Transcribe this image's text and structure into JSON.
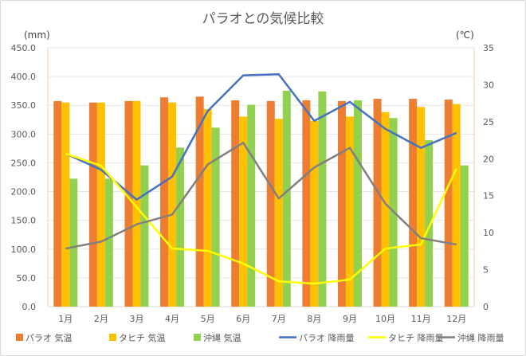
{
  "chart_data": {
    "type": "bar+line",
    "title": "パラオとの気候比較",
    "ylabel_left": "(mm)",
    "ylabel_right": "(℃)",
    "ylim_left": [
      0,
      450
    ],
    "ylim_right": [
      0,
      35
    ],
    "left_ticks": [
      "0.0",
      "50.0",
      "100.0",
      "150.0",
      "200.0",
      "250.0",
      "300.0",
      "350.0",
      "400.0",
      "450.0"
    ],
    "right_ticks": [
      "0",
      "5",
      "10",
      "15",
      "20",
      "25",
      "30",
      "35"
    ],
    "categories": [
      "1月",
      "2月",
      "3月",
      "4月",
      "5月",
      "6月",
      "7月",
      "8月",
      "9月",
      "10月",
      "11月",
      "12月"
    ],
    "grid": true,
    "legend_position": "bottom",
    "bar_series": [
      {
        "name": "パラオ 気温",
        "color": "#ED7D31",
        "axis": "right",
        "values": [
          27.8,
          27.6,
          27.8,
          28.3,
          28.4,
          27.9,
          27.8,
          27.9,
          27.8,
          28.1,
          28.1,
          28.0
        ]
      },
      {
        "name": "タヒチ 気温",
        "color": "#FFC000",
        "axis": "right",
        "values": [
          27.6,
          27.6,
          27.8,
          27.6,
          26.7,
          25.7,
          25.4,
          25.1,
          25.7,
          26.3,
          27.0,
          27.4
        ]
      },
      {
        "name": "沖縄 気温",
        "color": "#92D050",
        "axis": "right",
        "values": [
          17.3,
          17.3,
          19.1,
          21.5,
          24.2,
          27.3,
          29.2,
          29.1,
          27.9,
          25.5,
          22.5,
          19.1
        ]
      }
    ],
    "line_series": [
      {
        "name": "パラオ 降雨量",
        "color": "#4472C4",
        "axis": "left",
        "values": [
          266,
          238,
          186,
          226,
          340,
          402,
          404,
          323,
          356,
          309,
          276,
          302
        ]
      },
      {
        "name": "タヒチ 降雨量",
        "color": "#FFFF00",
        "axis": "left",
        "values": [
          266,
          245,
          173,
          101,
          97,
          75,
          44,
          40,
          47,
          101,
          108,
          240
        ]
      },
      {
        "name": "沖縄 降雨量",
        "color": "#808080",
        "axis": "left",
        "values": [
          101,
          113,
          143,
          160,
          247,
          285,
          188,
          242,
          276,
          179,
          119,
          108
        ]
      }
    ]
  }
}
